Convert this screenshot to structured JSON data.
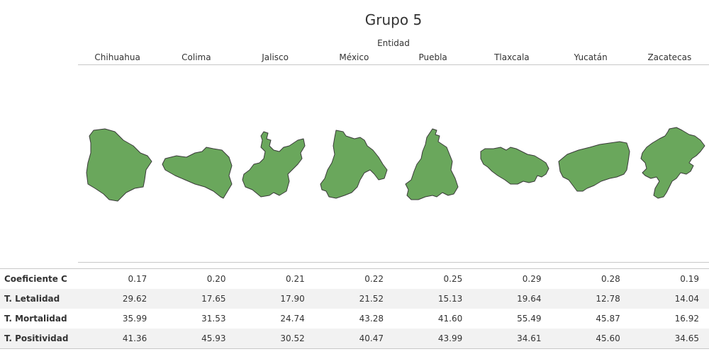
{
  "title": "Grupo 5",
  "column_axis_title": "Entidad",
  "colors": {
    "state_fill": "#6aa75c",
    "state_stroke": "#3a3a3a",
    "row_shade": "#f2f2f2"
  },
  "chart_data": {
    "type": "table",
    "title": "Grupo 5",
    "column_dimension": "Entidad",
    "columns": [
      "Chihuahua",
      "Colima",
      "Jalisco",
      "México",
      "Puebla",
      "Tlaxcala",
      "Yucatán",
      "Zacatecas"
    ],
    "rows": [
      {
        "label": "Coeficiente C",
        "values": [
          "0.17",
          "0.20",
          "0.21",
          "0.22",
          "0.25",
          "0.29",
          "0.28",
          "0.19"
        ]
      },
      {
        "label": "T. Letalidad",
        "values": [
          "29.62",
          "17.65",
          "17.90",
          "21.52",
          "15.13",
          "19.64",
          "12.78",
          "14.04"
        ]
      },
      {
        "label": "T. Mortalidad",
        "values": [
          "35.99",
          "31.53",
          "24.74",
          "43.28",
          "41.60",
          "55.49",
          "45.87",
          "16.92"
        ]
      },
      {
        "label": "T. Positividad",
        "values": [
          "41.36",
          "45.93",
          "30.52",
          "40.47",
          "43.99",
          "34.61",
          "45.60",
          "34.65"
        ]
      }
    ]
  }
}
